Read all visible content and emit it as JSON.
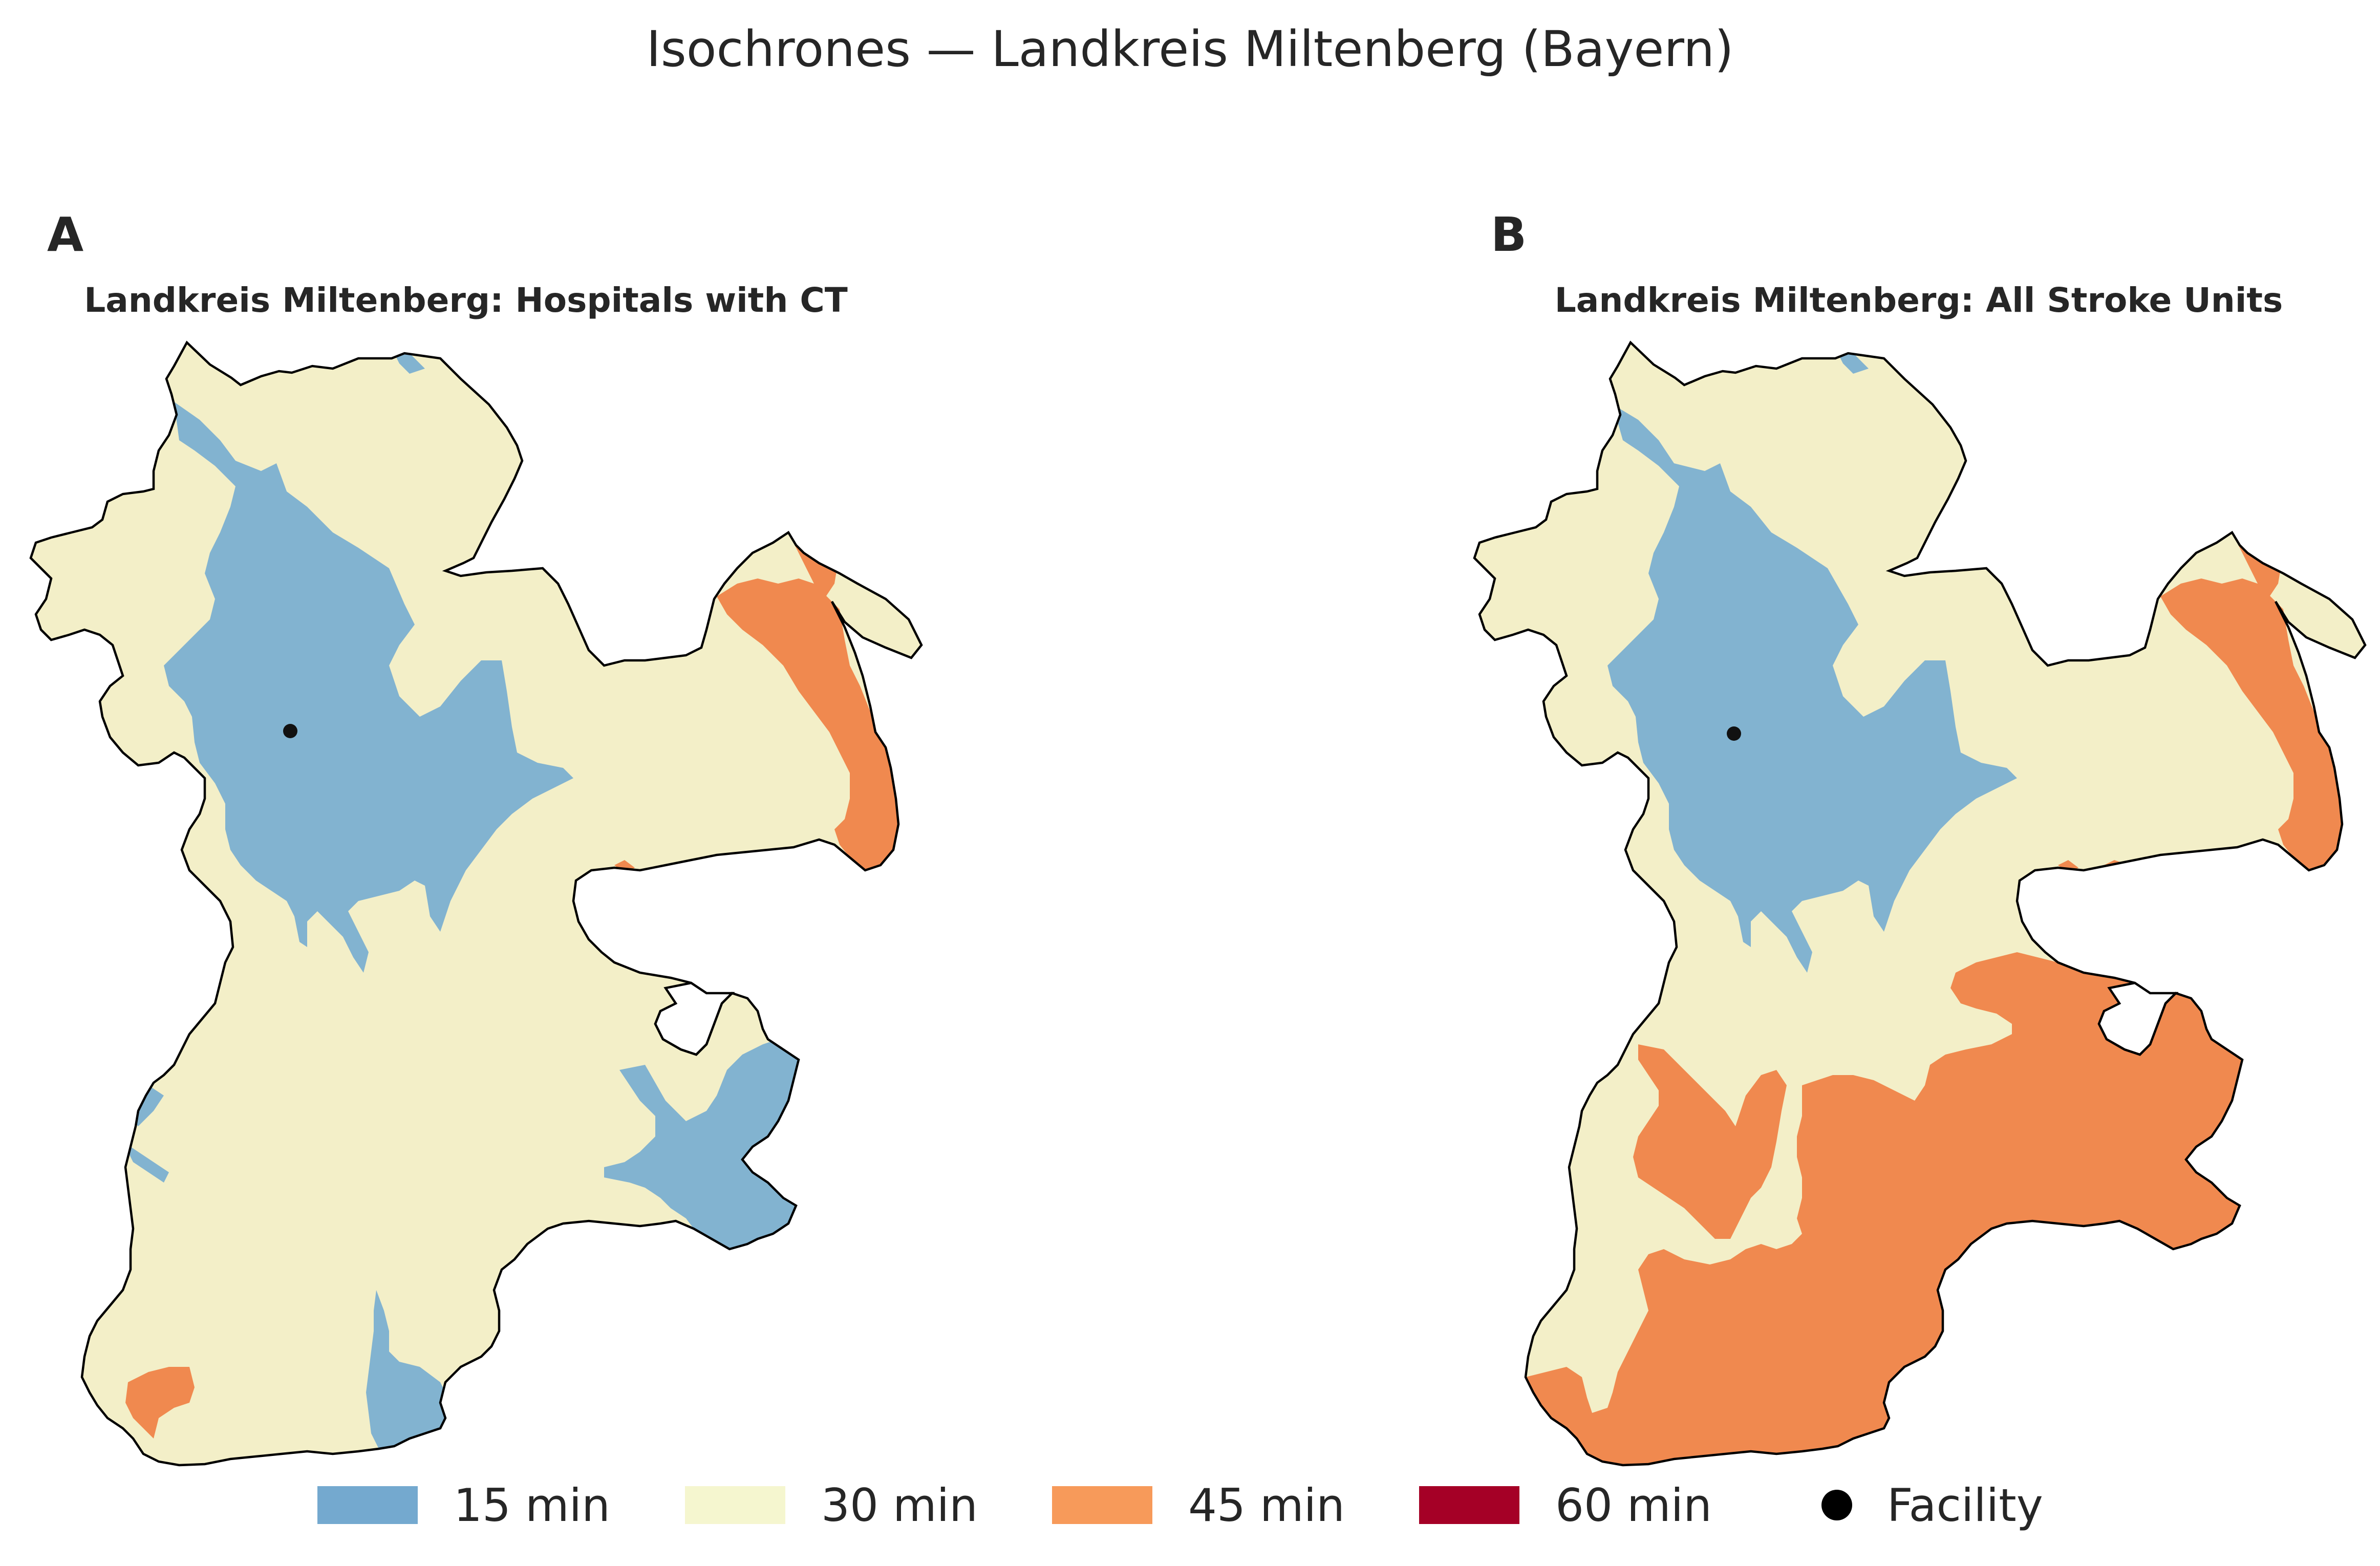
{
  "title": "Isochrones — Landkreis Miltenberg (Bayern)",
  "panels": [
    {
      "letter": "A",
      "title": "Landkreis Miltenberg: Hospitals with CT"
    },
    {
      "letter": "B",
      "title": "Landkreis Miltenberg: All Stroke Units"
    }
  ],
  "legend": [
    {
      "label": "15 min",
      "color": "#74a9cf"
    },
    {
      "label": "30 min",
      "color": "#f5f6cf"
    },
    {
      "label": "45 min",
      "color": "#f79a5a"
    },
    {
      "label": "60 min",
      "color": "#a50026"
    },
    {
      "label": "Facility",
      "color": "#000000"
    }
  ],
  "colors": {
    "band_15": "#82b3d0",
    "band_30": "#f3efc8",
    "band_45": "#f0894f",
    "boundary": "#000000",
    "facility": "#111111"
  }
}
